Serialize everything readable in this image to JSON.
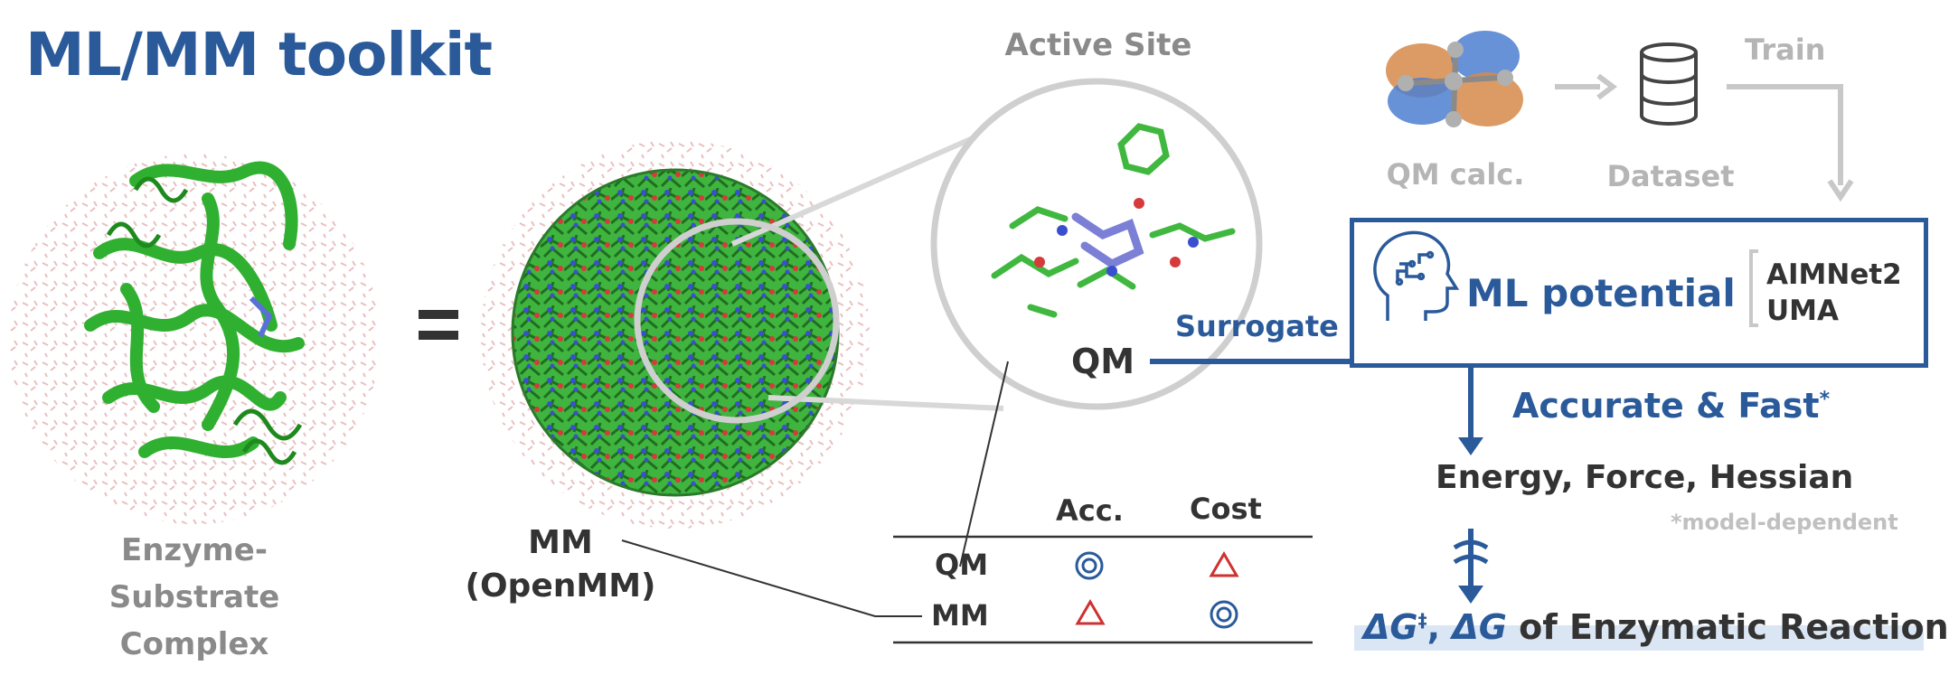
{
  "title": "ML/MM toolkit",
  "enzyme": {
    "line1": "Enzyme-Substrate",
    "line2": "Complex"
  },
  "equals": "=",
  "mm_label": {
    "line1": "MM",
    "line2": "(OpenMM)"
  },
  "active_site": "Active Site",
  "qm_label": "QM",
  "surrogate": "Surrogate",
  "pipeline": {
    "qm_calc": "QM calc.",
    "dataset": "Dataset",
    "train": "Train"
  },
  "ml_box": {
    "title": "ML potential",
    "models": [
      "AIMNet2",
      "UMA"
    ]
  },
  "accurate": {
    "text": "Accurate & Fast",
    "mark": "*"
  },
  "outputs": "Energy, Force, Hessian",
  "footnote": "*model-dependent",
  "final": {
    "dg_ts": "ΔG",
    "ts_mark": "‡",
    "sep": ", ",
    "dg": "ΔG",
    "rest": " of Enzymatic Reaction"
  },
  "table": {
    "headers": [
      "Acc.",
      "Cost"
    ],
    "rows": [
      {
        "label": "QM",
        "acc": "double-circle-icon",
        "cost": "triangle-icon"
      },
      {
        "label": "MM",
        "acc": "triangle-icon",
        "cost": "double-circle-icon"
      }
    ]
  },
  "colors": {
    "blue": "#2a5a9a",
    "gray": "#8a8a8a",
    "light_gray": "#c8c8c8",
    "green": "#2fbf2f",
    "red": "#d03030"
  }
}
